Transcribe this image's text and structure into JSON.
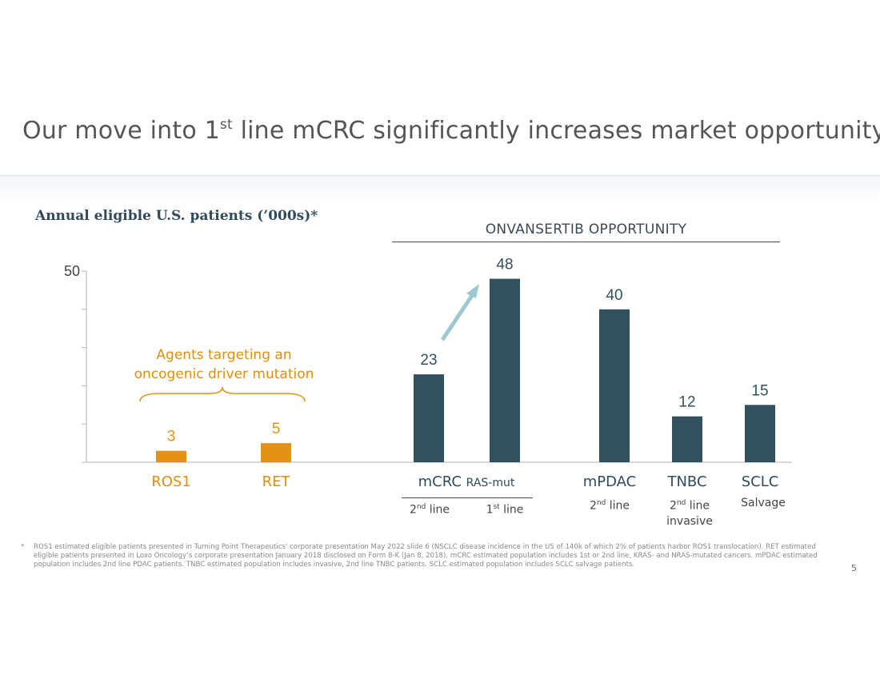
{
  "slide": {
    "title_main": "Our move into 1",
    "title_sup": "st",
    "title_rest": " line mCRC significantly increases market opportunity",
    "page_number": "5"
  },
  "chart_header": {
    "subtitle": "Annual eligible U.S. patients (’000s)*",
    "opportunity_title": "ONVANSERTIB OPPORTUNITY"
  },
  "annotation": {
    "bracket_line1": "Agents targeting an",
    "bracket_line2": "oncogenic driver mutation"
  },
  "categories": {
    "ros1": "ROS1",
    "ret": "RET",
    "mcrc": "mCRC",
    "mcrc_qualifier": "RAS-mut",
    "mpdac": "mPDAC",
    "tnbc": "TNBC",
    "sclc": "SCLC"
  },
  "sublabels": {
    "mcrc_2nd_num": "2",
    "mcrc_2nd_sup": "nd",
    "mcrc_2nd_text": " line",
    "mcrc_1st_num": "1",
    "mcrc_1st_sup": "st",
    "mcrc_1st_text": " line",
    "mpdac_num": "2",
    "mpdac_sup": "nd",
    "mpdac_text": " line",
    "tnbc_num": "2",
    "tnbc_sup": "nd",
    "tnbc_text": " line",
    "tnbc_line2": "invasive",
    "sclc": "Salvage"
  },
  "footnote": {
    "marker": "*",
    "text": "ROS1 estimated eligible patients presented in Turning Point Therapeutics' corporate presentation May 2022 slide 6 (NSCLC disease incidence in the US of 140k of which 2% of patients harbor ROS1 translocation). RET estimated eligible patients presented in Loxo Oncology’s corporate presentation January 2018 disclosed on Form 8-K (Jan 8, 2018). mCRC estimated population includes 1st or 2nd line, KRAS- and NRAS-mutated cancers. mPDAC estimated population includes 2nd line PDAC patients. TNBC estimated population includes invasive, 2nd line TNBC patients. SCLC estimated population includes SCLC salvage patients."
  },
  "colors": {
    "orange": "#e39117",
    "dark": "#33505f",
    "arrow": "#9ec8cf",
    "axis": "#b5b5b5"
  },
  "chart_data": {
    "type": "bar",
    "title": "Annual eligible U.S. patients (’000s)*",
    "ylim": [
      0,
      50
    ],
    "y_tick_labels": [
      "50"
    ],
    "grid": false,
    "bars": [
      {
        "category": "ROS1",
        "group": "Agents targeting an oncogenic driver mutation",
        "value": 3,
        "color": "#e39117"
      },
      {
        "category": "RET",
        "group": "Agents targeting an oncogenic driver mutation",
        "value": 5,
        "color": "#e39117"
      },
      {
        "category": "mCRC RAS-mut 2nd line",
        "group": "ONVANSERTIB OPPORTUNITY",
        "value": 23,
        "color": "#33505f"
      },
      {
        "category": "mCRC RAS-mut 1st line",
        "group": "ONVANSERTIB OPPORTUNITY",
        "value": 48,
        "color": "#33505f"
      },
      {
        "category": "mPDAC 2nd line",
        "group": "ONVANSERTIB OPPORTUNITY",
        "value": 40,
        "color": "#33505f"
      },
      {
        "category": "TNBC 2nd line invasive",
        "group": "ONVANSERTIB OPPORTUNITY",
        "value": 12,
        "color": "#33505f"
      },
      {
        "category": "SCLC Salvage",
        "group": "ONVANSERTIB OPPORTUNITY",
        "value": 15,
        "color": "#33505f"
      }
    ]
  }
}
